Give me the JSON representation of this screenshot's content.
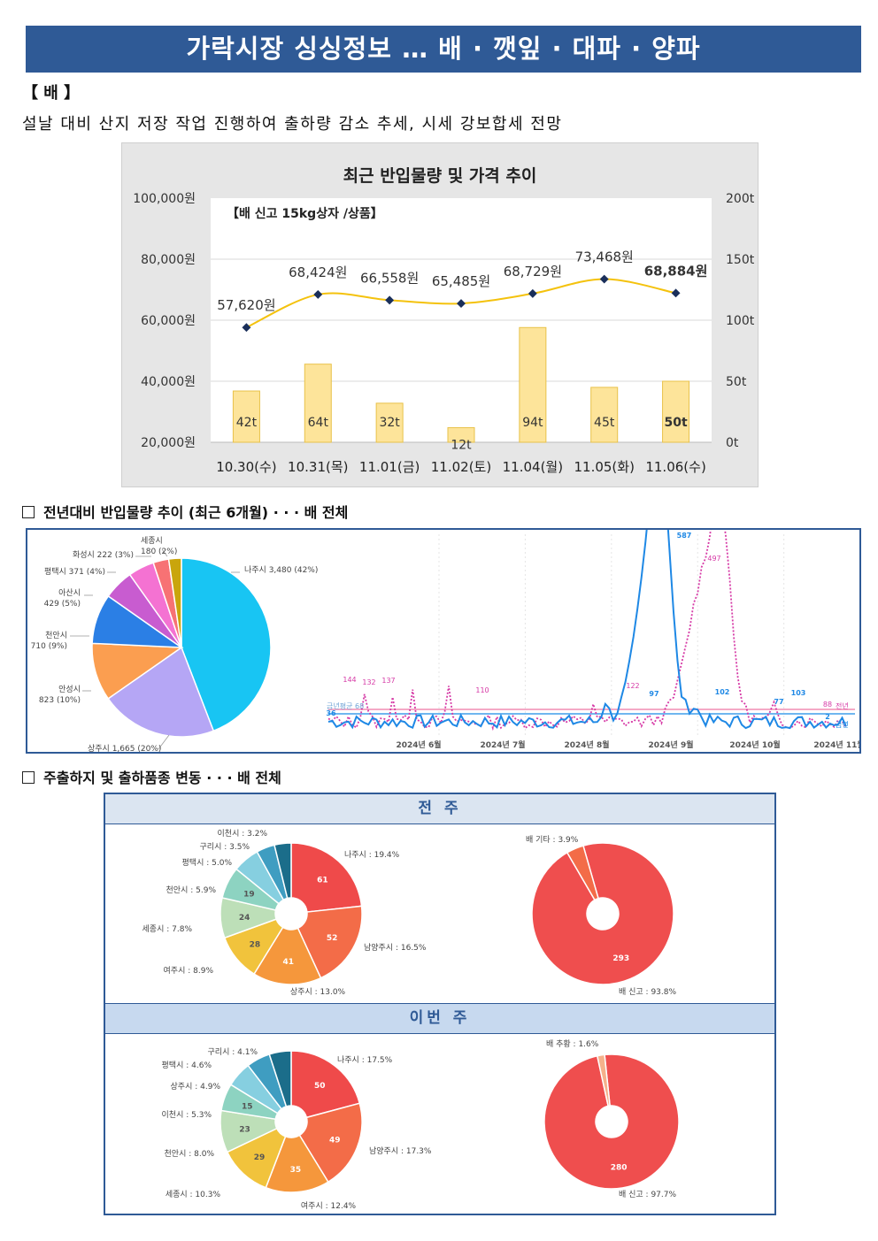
{
  "header": {
    "title": "가락시장 싱싱정보 … 배 · 깻잎 · 대파 · 양파"
  },
  "section_pear": {
    "label": "【 배 】",
    "summary": "설날 대비 산지 저장 작업 진행하여 출하량 감소 추세, 시세 강보합세 전망"
  },
  "chart_main": {
    "title": "최근 반입물량 및 가격 추이",
    "subtitle": "【배 신고 15kg상자 /상품】"
  },
  "chart_data": [
    {
      "type": "bar",
      "title": "최근 반입물량 및 가격 추이",
      "subtitle": "【배 신고 15kg상자 /상품】",
      "categories": [
        "10.30(수)",
        "10.31(목)",
        "11.01(금)",
        "11.02(토)",
        "11.04(월)",
        "11.05(화)",
        "11.06(수)"
      ],
      "series": [
        {
          "values": [
            42,
            64,
            32,
            12,
            94,
            45,
            50
          ],
          "labels": [
            "42t",
            "64t",
            "32t",
            "12t",
            "94t",
            "45t",
            "50t"
          ],
          "color": "#fde49a",
          "axis": "right"
        },
        {
          "values": [
            57620,
            68424,
            66558,
            65485,
            68729,
            73468,
            68884
          ],
          "labels": [
            "57,620원",
            "68,424원",
            "66,558원",
            "65,485원",
            "68,729원",
            "73,468원",
            "68,884원"
          ],
          "color": "#f4c20d",
          "axis": "left"
        }
      ],
      "left_axis": {
        "ticks": [
          "100,000원",
          "80,000원",
          "60,000원",
          "40,000원",
          "20,000원"
        ],
        "ylim": [
          20000,
          100000
        ]
      },
      "right_axis": {
        "ticks": [
          "200t",
          "150t",
          "100t",
          "50t",
          "0t"
        ],
        "ylim": [
          0,
          200
        ]
      },
      "grid": true
    },
    {
      "type": "pie",
      "title": "전년대비 반입물량 추이 (최근 6개월)",
      "categories": [
        "나주시",
        "상주시",
        "안성시",
        "천안시",
        "아산시",
        "평택시",
        "화성시",
        "세종시"
      ],
      "values": [
        3480,
        1665,
        823,
        710,
        429,
        371,
        222,
        180
      ],
      "labels": [
        "나주시 3,480 (42%)",
        "상주시 1,665 (20%)",
        "안성시\n823 (10%)",
        "천안시\n710 (9%)",
        "아산시\n429 (5%)",
        "평택시 371 (4%)",
        "화성시 222 (3%)",
        "세종시\n180 (2%)"
      ],
      "colors": [
        "#18c5f3",
        "#b5a6f5",
        "#fb9e50",
        "#2b7fe5",
        "#c85cd0",
        "#f472d2",
        "#f77274",
        "#c9a50c",
        "#1fccad",
        "#2a8de0"
      ]
    },
    {
      "type": "line",
      "title": "전년대비 반입물량 추이",
      "x_ticks": [
        "2024년 6월",
        "2024년 7월",
        "2024년 8월",
        "2024년 9월",
        "2024년 10월",
        "2024년 11월"
      ],
      "series": [
        {
          "name": "금년",
          "color": "#1e88e5",
          "peak_labels": [
            "36",
            "97",
            "587",
            "102",
            "77",
            "103",
            "2"
          ]
        },
        {
          "name": "전년",
          "color": "#d63aa6",
          "peak_labels": [
            "144",
            "132",
            "137",
            "110",
            "122",
            "497",
            "88"
          ]
        }
      ],
      "annotations": [
        "금년평균 68"
      ]
    },
    {
      "type": "pie",
      "title": "전 주 주출하지",
      "categories": [
        "나주시",
        "남양주시",
        "상주시",
        "여주시",
        "세종시",
        "천안시",
        "평택시",
        "구리시",
        "이천시"
      ],
      "values": [
        61,
        52,
        41,
        28,
        24,
        19,
        16,
        11,
        10
      ],
      "labels": [
        "나주시 : 19.4%",
        "남양주시 : 16.5%",
        "상주시 : 13.0%",
        "여주시 : 8.9%",
        "세종시 : 7.8%",
        "천안시 : 5.9%",
        "평택시 : 5.0%",
        "구리시 : 3.5%",
        "이천시 : 3.2%"
      ],
      "colors": [
        "#ef4a4a",
        "#f36c48",
        "#f5973c",
        "#f1c33c",
        "#bddfb8",
        "#8dd3c1",
        "#86cfe0",
        "#3f9dc1",
        "#1b6d8a",
        "#1e4a8e"
      ]
    },
    {
      "type": "pie",
      "title": "전 주 출하품종",
      "categories": [
        "배 신고",
        "배 기타"
      ],
      "values": [
        293,
        12
      ],
      "labels": [
        "배 신고 : 93.8%",
        "배 기타 : 3.9%"
      ],
      "colors": [
        "#ef4e4e",
        "#f36c48",
        "#f5973c"
      ]
    },
    {
      "type": "pie",
      "title": "이번 주 주출하지",
      "categories": [
        "나주시",
        "남양주시",
        "여주시",
        "세종시",
        "천안시",
        "이천시",
        "상주시",
        "평택시",
        "구리시"
      ],
      "values": [
        50,
        49,
        35,
        29,
        23,
        15,
        14,
        13,
        12
      ],
      "labels": [
        "나주시 : 17.5%",
        "남양주시 : 17.3%",
        "여주시 : 12.4%",
        "세종시 : 10.3%",
        "천안시 : 8.0%",
        "이천시 : 5.3%",
        "상주시 : 4.9%",
        "평택시 : 4.6%",
        "구리시 : 4.1%"
      ],
      "colors": [
        "#ef4a4a",
        "#f36c48",
        "#f5973c",
        "#f1c33c",
        "#bddfb8",
        "#8dd3c1",
        "#86cfe0",
        "#3f9dc1",
        "#1b6d8a",
        "#1e4a8e"
      ]
    },
    {
      "type": "pie",
      "title": "이번 주 출하품종",
      "categories": [
        "배 신고",
        "배 추황"
      ],
      "values": [
        280,
        5
      ],
      "labels": [
        "배 신고 : 97.7%",
        "배 추황 : 1.6%"
      ],
      "colors": [
        "#ef4e4e",
        "#f5b18b",
        "#f7d0b8"
      ]
    }
  ],
  "section_trend": {
    "label": "전년대비 반입물량 추이 (최근 6개월) · · · 배 전체"
  },
  "section_ship": {
    "label": "주출하지 및 출하품종 변동 · · · 배 전체"
  },
  "weeks": {
    "prev": "전 주",
    "curr": "이번 주"
  }
}
